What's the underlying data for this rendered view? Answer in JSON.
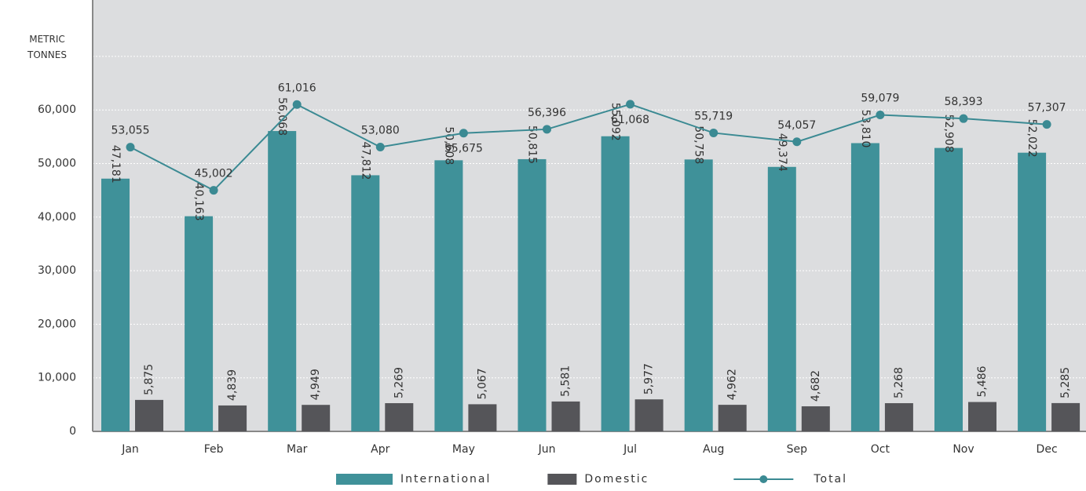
{
  "chart_data": {
    "type": "bar_line",
    "categories": [
      "Jan",
      "Feb",
      "Mar",
      "Apr",
      "May",
      "Jun",
      "Jul",
      "Aug",
      "Sep",
      "Oct",
      "Nov",
      "Dec"
    ],
    "series": [
      {
        "name": "International",
        "color": "#3f9199",
        "type": "bar",
        "values": [
          47181,
          40163,
          56068,
          47812,
          50608,
          50815,
          55092,
          50758,
          49374,
          53810,
          52908,
          52022
        ],
        "value_labels": [
          "47,181",
          "40,163",
          "56,068",
          "47,812",
          "50,608",
          "50,815",
          "55,092",
          "50,758",
          "49,374",
          "53,810",
          "52,908",
          "52,022"
        ]
      },
      {
        "name": "Domestic",
        "color": "#555559",
        "type": "bar",
        "values": [
          5875,
          4839,
          4949,
          5269,
          5067,
          5581,
          5977,
          4962,
          4682,
          5268,
          5486,
          5285
        ],
        "value_labels": [
          "5,875",
          "4,839",
          "4,949",
          "5,269",
          "5,067",
          "5,581",
          "5,977",
          "4,962",
          "4,682",
          "5,268",
          "5,486",
          "5,285"
        ]
      },
      {
        "name": "Total",
        "color": "#3b8a93",
        "type": "line",
        "values": [
          53055,
          45002,
          61016,
          53080,
          55675,
          56396,
          61068,
          55719,
          54057,
          59079,
          58393,
          57307
        ],
        "value_labels": [
          "53,055",
          "45,002",
          "61,016",
          "53,080",
          "55,675",
          "56,396",
          "61,068",
          "55,719",
          "54,057",
          "59,079",
          "58,393",
          "57,307"
        ]
      }
    ],
    "ylim": [
      0,
      80000
    ],
    "yticks": [
      0,
      {
        "value": 10000,
        "label": "10,000"
      },
      {
        "value": 20000,
        "label": "20,000"
      },
      {
        "value": 30000,
        "label": "30,000"
      },
      {
        "value": 40000,
        "label": "40,000"
      },
      {
        "value": 50000,
        "label": "50,000"
      },
      {
        "value": 60000,
        "label": "60,000"
      },
      {
        "value": 70000,
        "label": "METRIC TONNES"
      }
    ],
    "grid": true,
    "legend": "bottom"
  }
}
